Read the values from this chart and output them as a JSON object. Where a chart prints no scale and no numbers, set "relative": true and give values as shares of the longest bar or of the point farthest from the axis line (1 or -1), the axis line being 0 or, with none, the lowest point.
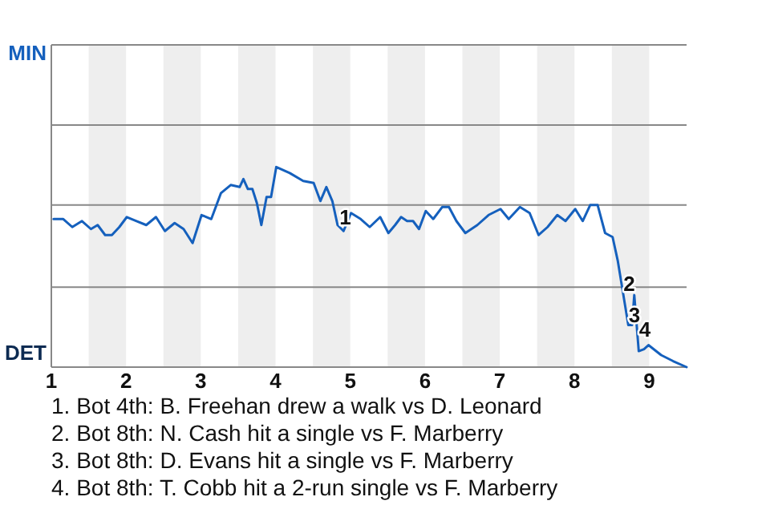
{
  "chart_data": {
    "type": "line",
    "relative": true,
    "xlim": [
      1,
      9.5
    ],
    "xticks": [
      1,
      2,
      3,
      4,
      5,
      6,
      7,
      8,
      9
    ],
    "marker": "none",
    "line_style": "solid",
    "ref_lines": [
      {
        "axis": "y",
        "value": 0.4,
        "color": "#888888"
      },
      {
        "axis": "y",
        "value": 0.81,
        "color": "#888888"
      },
      {
        "axis": "y",
        "value": 1.21,
        "color": "#888888"
      },
      {
        "axis": "y",
        "value": 1.61,
        "color": "#888888"
      }
    ],
    "bands": [
      {
        "axis": "x",
        "from": 1.5,
        "to": 2,
        "color": "#eeeeee"
      },
      {
        "axis": "x",
        "from": 2.5,
        "to": 3,
        "color": "#eeeeee"
      },
      {
        "axis": "x",
        "from": 3.5,
        "to": 4,
        "color": "#eeeeee"
      },
      {
        "axis": "x",
        "from": 4.5,
        "to": 5,
        "color": "#eeeeee"
      },
      {
        "axis": "x",
        "from": 5.5,
        "to": 6,
        "color": "#eeeeee"
      },
      {
        "axis": "x",
        "from": 6.5,
        "to": 7,
        "color": "#eeeeee"
      },
      {
        "axis": "x",
        "from": 7.5,
        "to": 8,
        "color": "#eeeeee"
      },
      {
        "axis": "x",
        "from": 8.5,
        "to": 9,
        "color": "#eeeeee"
      }
    ],
    "series": [
      {
        "color": "#1560bd",
        "x": [
          1.03,
          1.16,
          1.28,
          1.41,
          1.53,
          1.62,
          1.72,
          1.81,
          1.91,
          2.01,
          2.14,
          2.27,
          2.4,
          2.52,
          2.65,
          2.77,
          2.89,
          3.01,
          3.14,
          3.27,
          3.4,
          3.52,
          3.57,
          3.63,
          3.69,
          3.75,
          3.81,
          3.88,
          3.94,
          4.01,
          4.19,
          4.37,
          4.51,
          4.6,
          4.68,
          4.76,
          4.83,
          4.91,
          5.01,
          5.14,
          5.26,
          5.4,
          5.51,
          5.6,
          5.68,
          5.76,
          5.84,
          5.92,
          6.01,
          6.11,
          6.23,
          6.32,
          6.42,
          6.54,
          6.7,
          6.85,
          7.01,
          7.12,
          7.27,
          7.4,
          7.52,
          7.64,
          7.77,
          7.88,
          8.01,
          8.11,
          8.21,
          8.31,
          8.41,
          8.51,
          8.58,
          8.65,
          8.72,
          8.77,
          8.8,
          8.86,
          8.93,
          8.99,
          9.16,
          9.32,
          9.5
        ],
        "values": [
          0.74,
          0.74,
          0.7,
          0.73,
          0.69,
          0.71,
          0.66,
          0.66,
          0.7,
          0.75,
          0.73,
          0.71,
          0.75,
          0.68,
          0.72,
          0.69,
          0.62,
          0.76,
          0.74,
          0.87,
          0.91,
          0.9,
          0.94,
          0.89,
          0.89,
          0.82,
          0.71,
          0.85,
          0.85,
          1,
          0.97,
          0.93,
          0.92,
          0.83,
          0.9,
          0.83,
          0.71,
          0.68,
          0.77,
          0.74,
          0.7,
          0.75,
          0.67,
          0.71,
          0.75,
          0.73,
          0.73,
          0.69,
          0.78,
          0.74,
          0.8,
          0.8,
          0.73,
          0.67,
          0.71,
          0.76,
          0.79,
          0.74,
          0.8,
          0.77,
          0.66,
          0.7,
          0.76,
          0.73,
          0.79,
          0.73,
          0.81,
          0.81,
          0.67,
          0.65,
          0.53,
          0.37,
          0.21,
          0.21,
          0.36,
          0.08,
          0.09,
          0.11,
          0.06,
          0.03,
          0
        ]
      }
    ],
    "annotations": [
      "MIN",
      "DET",
      {
        "text": "1",
        "x": 4.89,
        "y": 0.74
      },
      {
        "text": "2",
        "x": 8.69,
        "y": 0.41
      },
      {
        "text": "3",
        "x": 8.76,
        "y": 0.25
      },
      {
        "text": "4",
        "x": 8.9,
        "y": 0.18
      },
      "1. Bot 4th: B. Freehan drew a walk vs D. Leonard",
      "2. Bot 8th: N. Cash hit a single vs F. Marberry",
      "3. Bot 8th: D. Evans hit a single vs F. Marberry",
      "4. Bot 8th: T. Cobb hit a 2-run single vs F. Marberry"
    ]
  }
}
